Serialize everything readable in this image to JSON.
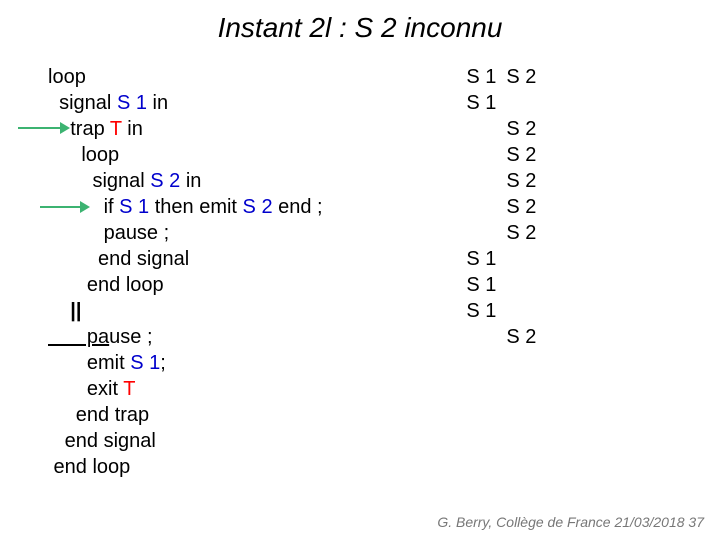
{
  "title": "Instant 2l : S 2  inconnu",
  "code": {
    "l0": "loop",
    "l1_a": "  signal ",
    "l1_b": "S 1",
    "l1_c": " in",
    "l2_a": "    trap ",
    "l2_b": "T",
    "l2_c": " in",
    "l3": "      loop",
    "l4_a": "        signal ",
    "l4_b": "S 2",
    "l4_c": " in",
    "l5_a": "          if ",
    "l5_b": "S 1",
    "l5_c": " then emit ",
    "l5_d": "S 2",
    "l5_e": " end ;",
    "l6": "          pause ;",
    "l7": "         end signal",
    "l8": "       end loop",
    "l9": "    ||",
    "l10_p": "       pa",
    "l10_r": "use ;",
    "l11_a": "       emit ",
    "l11_b": "S 1",
    "l11_c": ";",
    "l12_a": "       exit ",
    "l12_b": "T",
    "l13": "     end trap",
    "l14": "   end signal",
    "l15": " end loop"
  },
  "right": {
    "row0": {
      "c1": "S 1",
      "c2": "S 2"
    },
    "row1": {
      "c1": "S 1",
      "c2": ""
    },
    "row2": {
      "c1": "",
      "c2": "S 2"
    },
    "row3": {
      "c1": "",
      "c2": "S 2"
    },
    "row4": {
      "c1": "",
      "c2": "S 2"
    },
    "row5": {
      "c1": "",
      "c2": "S 2"
    },
    "row6": {
      "c1": "",
      "c2": "S 2"
    },
    "row7": {
      "c1": "S 1",
      "c2": ""
    },
    "row8": {
      "c1": "S 1",
      "c2": ""
    },
    "row9": {
      "c1": "S 1",
      "c2": ""
    },
    "row10": {
      "c1": "",
      "c2": "S 2"
    }
  },
  "footer": "G. Berry, Collège de France  21/03/2018  37"
}
